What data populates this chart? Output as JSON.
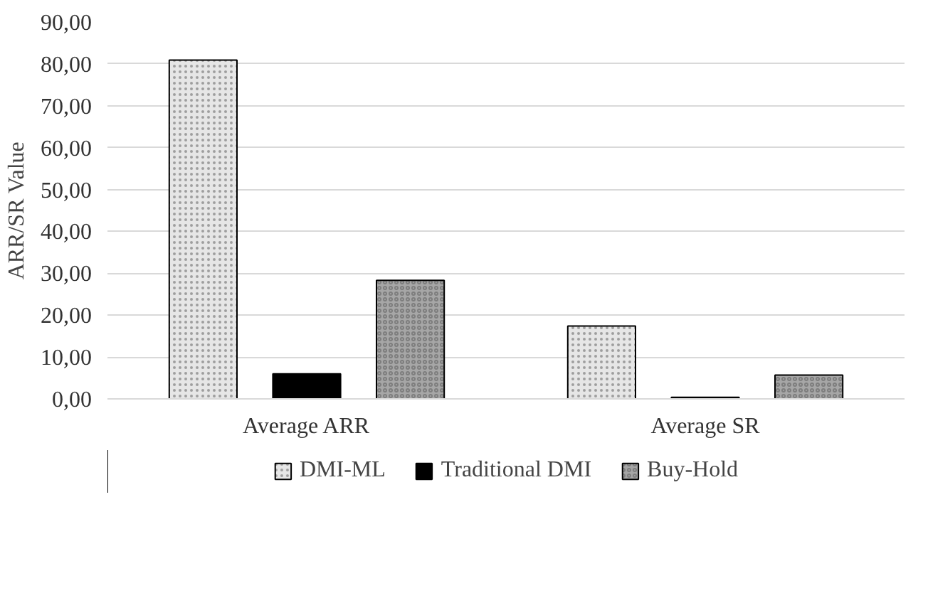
{
  "chart_data": {
    "type": "bar",
    "ylabel": "ARR/SR Value",
    "categories": [
      "Average ARR",
      "Average SR"
    ],
    "series": [
      {
        "name": "DMI-ML",
        "color": "#e6e6e6",
        "values": [
          80.9,
          17.4
        ]
      },
      {
        "name": "Traditional DMI",
        "color": "#000000",
        "values": [
          6.0,
          0.4
        ]
      },
      {
        "name": "Buy-Hold",
        "color": "#a6a6a6",
        "values": [
          28.3,
          5.7
        ]
      }
    ],
    "ylim": [
      0,
      90
    ],
    "yticks": [
      {
        "value": 0,
        "label": "0,00"
      },
      {
        "value": 10,
        "label": "10,00"
      },
      {
        "value": 20,
        "label": "20,00"
      },
      {
        "value": 30,
        "label": "30,00"
      },
      {
        "value": 40,
        "label": "40,00"
      },
      {
        "value": 50,
        "label": "50,00"
      },
      {
        "value": 60,
        "label": "60,00"
      },
      {
        "value": 70,
        "label": "70,00"
      },
      {
        "value": 80,
        "label": "80,00"
      },
      {
        "value": 90,
        "label": "90,00"
      }
    ],
    "grid": "y",
    "legend": "bottom"
  }
}
